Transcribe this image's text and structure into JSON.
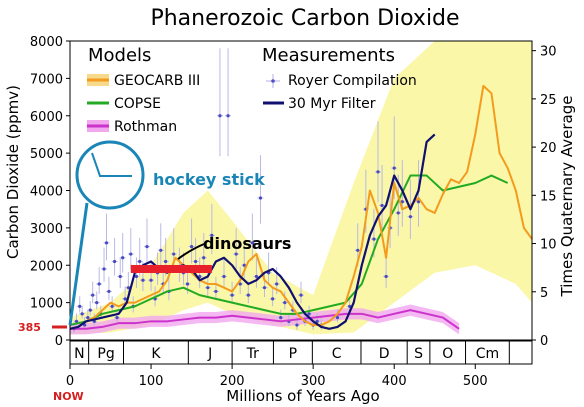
{
  "chart_data": {
    "type": "line",
    "title": "Phanerozoic Carbon Dioxide",
    "xlabel": "Millions of Years Ago",
    "ylabel_left": "Carbon Dioxide (ppmv)",
    "ylabel_right": "Times Quaternary Average",
    "xlim": [
      0,
      570
    ],
    "ylim_left": [
      0,
      8000
    ],
    "ylim_right": [
      0,
      31
    ],
    "x_ticks": [
      0,
      100,
      200,
      300,
      400,
      500
    ],
    "y_ticks_left": [
      0,
      1000,
      2000,
      3000,
      4000,
      5000,
      6000,
      7000,
      8000
    ],
    "y_ticks_right": [
      0,
      5,
      10,
      15,
      20,
      25,
      30
    ],
    "grid": false,
    "legend": {
      "models_heading": "Models",
      "measurements_heading": "Measurements",
      "models": [
        {
          "name": "GEOCARB III",
          "color": "#f39b1f",
          "style": "line-with-band"
        },
        {
          "name": "COPSE",
          "color": "#22aa22",
          "style": "line"
        },
        {
          "name": "Rothman",
          "color": "#cc33cc",
          "style": "line-with-band"
        }
      ],
      "measurements": [
        {
          "name": "Royer Compilation",
          "color": "#6a6acc",
          "style": "points"
        },
        {
          "name": "30 Myr Filter",
          "color": "#101070",
          "style": "line"
        }
      ]
    },
    "geocarb_band": {
      "x": [
        0,
        50,
        100,
        140,
        170,
        200,
        250,
        300,
        350,
        400,
        450,
        500,
        550,
        570
      ],
      "upper": [
        600,
        1000,
        2000,
        3400,
        4000,
        3200,
        1800,
        1200,
        4200,
        7000,
        8000,
        8000,
        8000,
        8000
      ],
      "lower": [
        150,
        200,
        400,
        800,
        1000,
        700,
        400,
        150,
        200,
        1000,
        1800,
        2000,
        1500,
        1000
      ]
    },
    "series": [
      {
        "name": "GEOCARB III",
        "color": "#f39b1f",
        "x": [
          0,
          10,
          20,
          30,
          40,
          50,
          60,
          70,
          80,
          90,
          100,
          110,
          120,
          130,
          140,
          150,
          160,
          170,
          180,
          190,
          200,
          210,
          220,
          230,
          240,
          250,
          260,
          270,
          280,
          290,
          300,
          310,
          320,
          330,
          340,
          350,
          360,
          370,
          380,
          390,
          400,
          410,
          420,
          430,
          440,
          450,
          460,
          470,
          480,
          490,
          500,
          510,
          520,
          530,
          540,
          550,
          560,
          570
        ],
        "values": [
          300,
          350,
          500,
          600,
          800,
          1000,
          900,
          1000,
          1000,
          1100,
          1200,
          1300,
          1600,
          2200,
          2000,
          1800,
          1600,
          1500,
          1500,
          1400,
          1300,
          1600,
          2100,
          2300,
          1600,
          1400,
          1300,
          1000,
          700,
          500,
          400,
          400,
          500,
          700,
          1000,
          1700,
          2500,
          4000,
          3400,
          2200,
          4200,
          3500,
          3600,
          3800,
          3500,
          3400,
          3900,
          4300,
          4200,
          4500,
          5500,
          6800,
          6600,
          5000,
          4600,
          4000,
          3000,
          2700
        ]
      },
      {
        "name": "COPSE",
        "color": "#22aa22",
        "x": [
          0,
          20,
          40,
          60,
          80,
          100,
          120,
          140,
          160,
          180,
          200,
          220,
          240,
          260,
          280,
          300,
          320,
          340,
          360,
          380,
          400,
          420,
          440,
          460,
          480,
          500,
          520,
          540
        ],
        "values": [
          400,
          500,
          700,
          800,
          900,
          1100,
          1300,
          1400,
          1200,
          1100,
          1000,
          900,
          800,
          700,
          700,
          800,
          900,
          1000,
          1500,
          2700,
          3500,
          4400,
          4400,
          4000,
          4100,
          4200,
          4400,
          4200
        ]
      },
      {
        "name": "Rothman",
        "color": "#cc33cc",
        "x": [
          0,
          20,
          40,
          60,
          80,
          100,
          120,
          140,
          160,
          180,
          200,
          220,
          240,
          260,
          280,
          300,
          320,
          340,
          360,
          380,
          400,
          420,
          440,
          460,
          480
        ],
        "values": [
          300,
          300,
          350,
          450,
          450,
          500,
          500,
          550,
          600,
          600,
          650,
          600,
          550,
          500,
          550,
          600,
          650,
          700,
          700,
          600,
          700,
          800,
          700,
          600,
          300
        ]
      },
      {
        "name": "30 Myr Filter",
        "color": "#101070",
        "x": [
          0,
          10,
          20,
          30,
          40,
          50,
          60,
          70,
          80,
          90,
          100,
          110,
          120,
          130,
          140,
          150,
          160,
          170,
          180,
          190,
          200,
          210,
          220,
          230,
          240,
          250,
          260,
          270,
          280,
          290,
          300,
          310,
          320,
          330,
          340,
          350,
          360,
          370,
          380,
          390,
          400,
          410,
          420,
          430,
          440,
          450
        ],
        "values": [
          300,
          350,
          500,
          550,
          600,
          650,
          700,
          1000,
          1800,
          2000,
          2100,
          1900,
          1800,
          1950,
          2000,
          1900,
          1600,
          1700,
          2100,
          2200,
          2000,
          1700,
          1500,
          1600,
          1800,
          1900,
          1700,
          1400,
          1000,
          700,
          500,
          350,
          300,
          350,
          500,
          1000,
          2000,
          2800,
          3300,
          3600,
          4400,
          4000,
          3500,
          4000,
          5300,
          5500
        ]
      }
    ],
    "royer_points": [
      [
        5,
        300
      ],
      [
        8,
        500
      ],
      [
        12,
        900
      ],
      [
        15,
        700
      ],
      [
        18,
        400
      ],
      [
        22,
        600
      ],
      [
        25,
        800
      ],
      [
        28,
        1200
      ],
      [
        30,
        500
      ],
      [
        33,
        1000
      ],
      [
        36,
        1500
      ],
      [
        38,
        700
      ],
      [
        42,
        1900
      ],
      [
        45,
        2600
      ],
      [
        48,
        1300
      ],
      [
        52,
        900
      ],
      [
        55,
        2100
      ],
      [
        58,
        600
      ],
      [
        62,
        1700
      ],
      [
        65,
        2200
      ],
      [
        68,
        1100
      ],
      [
        72,
        1400
      ],
      [
        75,
        2300
      ],
      [
        78,
        900
      ],
      [
        82,
        1700
      ],
      [
        86,
        2100
      ],
      [
        90,
        1600
      ],
      [
        95,
        2500
      ],
      [
        100,
        1600
      ],
      [
        105,
        1100
      ],
      [
        108,
        1800
      ],
      [
        112,
        2400
      ],
      [
        115,
        1500
      ],
      [
        118,
        2100
      ],
      [
        122,
        1300
      ],
      [
        128,
        2300
      ],
      [
        135,
        1900
      ],
      [
        140,
        1800
      ],
      [
        145,
        1500
      ],
      [
        150,
        2500
      ],
      [
        155,
        2100
      ],
      [
        160,
        1700
      ],
      [
        165,
        2200
      ],
      [
        170,
        1400
      ],
      [
        175,
        2800
      ],
      [
        180,
        1300
      ],
      [
        185,
        6000
      ],
      [
        190,
        1700
      ],
      [
        195,
        6000
      ],
      [
        200,
        1200
      ],
      [
        205,
        2300
      ],
      [
        210,
        1500
      ],
      [
        215,
        2000
      ],
      [
        220,
        1200
      ],
      [
        225,
        2600
      ],
      [
        230,
        1700
      ],
      [
        235,
        3800
      ],
      [
        240,
        1400
      ],
      [
        245,
        1800
      ],
      [
        250,
        1100
      ],
      [
        255,
        1500
      ],
      [
        260,
        600
      ],
      [
        265,
        1000
      ],
      [
        270,
        500
      ],
      [
        275,
        800
      ],
      [
        280,
        400
      ],
      [
        285,
        1200
      ],
      [
        290,
        500
      ],
      [
        295,
        700
      ],
      [
        300,
        400
      ],
      [
        305,
        500
      ],
      [
        310,
        400
      ],
      [
        330,
        600
      ],
      [
        345,
        900
      ],
      [
        355,
        2400
      ],
      [
        365,
        3500
      ],
      [
        375,
        2700
      ],
      [
        380,
        4500
      ],
      [
        385,
        3600
      ],
      [
        390,
        1700
      ],
      [
        395,
        3000
      ],
      [
        400,
        4600
      ],
      [
        405,
        3400
      ],
      [
        410,
        3700
      ],
      [
        420,
        3300
      ],
      [
        430,
        3700
      ]
    ],
    "periods": [
      {
        "label": "N",
        "from": 0,
        "to": 23
      },
      {
        "label": "Pg",
        "from": 23,
        "to": 66
      },
      {
        "label": "K",
        "from": 66,
        "to": 146
      },
      {
        "label": "J",
        "from": 146,
        "to": 200
      },
      {
        "label": "Tr",
        "from": 200,
        "to": 251
      },
      {
        "label": "P",
        "from": 251,
        "to": 299
      },
      {
        "label": "C",
        "from": 299,
        "to": 359
      },
      {
        "label": "D",
        "from": 359,
        "to": 416
      },
      {
        "label": "S",
        "from": 416,
        "to": 444
      },
      {
        "label": "O",
        "from": 444,
        "to": 488
      },
      {
        "label": "Cm",
        "from": 488,
        "to": 542
      }
    ],
    "annotations": {
      "hockey_stick": "hockey stick",
      "dinosaurs": "dinosaurs",
      "current_level": "385",
      "now": "NOW",
      "dinosaur_bar": {
        "from": 75,
        "to": 175,
        "value": 1900
      }
    }
  }
}
